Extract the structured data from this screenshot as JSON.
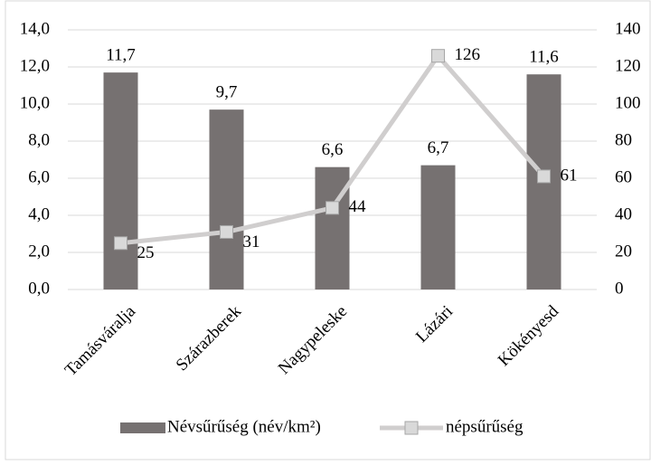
{
  "chart_data": {
    "type": "bar",
    "categories": [
      "Tamásváralja",
      "Szárazberek",
      "Nagypeleske",
      "Lázári",
      "Kökényesd"
    ],
    "series": [
      {
        "name": "Névsűrűség (név/km²)",
        "type": "bar",
        "color": "#767171",
        "values": [
          11.7,
          9.7,
          6.6,
          6.7,
          11.6
        ],
        "value_labels": [
          "11,7",
          "9,7",
          "6,6",
          "6,7",
          "11,6"
        ]
      },
      {
        "name": "népsűrűség",
        "type": "line",
        "axis": "y2",
        "color": "#d0cece",
        "marker_color": "#d9d9d9",
        "values": [
          25,
          31,
          44,
          126,
          61
        ]
      }
    ],
    "ylim": [
      0,
      14
    ],
    "yticks": [
      {
        "value": 0,
        "label": "0,0"
      },
      {
        "value": 2,
        "label": "2,0"
      },
      {
        "value": 4,
        "label": "4,0"
      },
      {
        "value": 6,
        "label": "6,0"
      },
      {
        "value": 8,
        "label": "8,0"
      },
      {
        "value": 10,
        "label": "10,0"
      },
      {
        "value": 12,
        "label": "12,0"
      },
      {
        "value": 14,
        "label": "14,0"
      }
    ],
    "y2lim": [
      0,
      140
    ],
    "y2ticks": [
      0,
      20,
      40,
      60,
      80,
      100,
      120,
      140
    ],
    "grid": true,
    "legend": "bottom"
  }
}
